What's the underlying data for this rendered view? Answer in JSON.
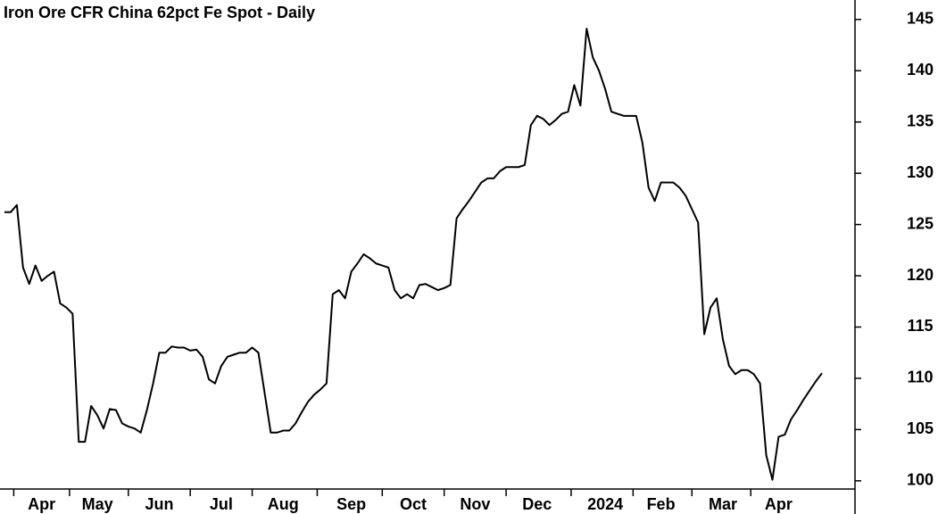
{
  "chart_data": {
    "type": "line",
    "title": "Iron Ore CFR China 62pct Fe Spot - Daily",
    "categories": [
      null,
      null,
      null,
      null,
      null,
      null,
      "Apr",
      null,
      null,
      null,
      null,
      null,
      null,
      null,
      null,
      "May",
      null,
      null,
      null,
      null,
      null,
      null,
      null,
      null,
      null,
      "Jun",
      null,
      null,
      null,
      null,
      null,
      null,
      null,
      null,
      null,
      "Jul",
      null,
      null,
      null,
      null,
      null,
      null,
      null,
      null,
      null,
      "Aug",
      null,
      null,
      null,
      null,
      null,
      null,
      null,
      null,
      null,
      null,
      "Sep",
      null,
      null,
      null,
      null,
      null,
      null,
      null,
      null,
      null,
      "Oct",
      null,
      null,
      null,
      null,
      null,
      null,
      null,
      null,
      null,
      "Nov",
      null,
      null,
      null,
      null,
      null,
      null,
      null,
      null,
      null,
      "Dec",
      null,
      null,
      null,
      null,
      null,
      null,
      null,
      null,
      null,
      null,
      "2024",
      null,
      null,
      null,
      null,
      null,
      null,
      null,
      null,
      "Feb",
      null,
      null,
      null,
      null,
      null,
      null,
      null,
      null,
      null,
      "Mar",
      null,
      null,
      null,
      null,
      null,
      null,
      null,
      null,
      "Apr",
      null,
      null,
      null,
      null,
      null,
      null,
      null
    ],
    "series": [
      {
        "name": "Iron Ore CFR China 62pct Fe Spot",
        "color": "#000000",
        "values": [
          126.2,
          126.2,
          126.9,
          120.8,
          119.2,
          121,
          119.5,
          120,
          120.4,
          117.3,
          116.9,
          116.3,
          103.8,
          103.8,
          107.3,
          106.4,
          105.1,
          107,
          106.9,
          105.6,
          105.3,
          105.1,
          104.7,
          106.9,
          109.5,
          112.5,
          112.5,
          113.1,
          113,
          113,
          112.7,
          112.8,
          112.1,
          109.9,
          109.5,
          111.2,
          112.1,
          112.3,
          112.5,
          112.5,
          113,
          112.5,
          108.6,
          104.7,
          104.7,
          104.9,
          104.9,
          105.6,
          106.7,
          107.7,
          108.4,
          108.9,
          109.5,
          118.2,
          118.6,
          117.8,
          120.4,
          121.2,
          122.1,
          121.7,
          121.2,
          121,
          120.8,
          118.6,
          117.8,
          118.2,
          117.8,
          119.1,
          119.2,
          118.9,
          118.6,
          118.8,
          119.1,
          125.6,
          126.5,
          127.3,
          128.2,
          129.1,
          129.5,
          129.5,
          130.2,
          130.6,
          130.6,
          130.6,
          130.8,
          134.7,
          135.6,
          135.3,
          134.7,
          135.2,
          135.8,
          136,
          138.6,
          136.6,
          144.1,
          141.3,
          140,
          138.2,
          136,
          135.8,
          135.6,
          135.6,
          135.6,
          133,
          128.6,
          127.3,
          129.1,
          129.1,
          129.1,
          128.6,
          127.8,
          126.5,
          125.2,
          114.3,
          116.9,
          117.8,
          113.8,
          111.2,
          110.4,
          110.8,
          110.8,
          110.4,
          109.5,
          102.5,
          100.1,
          104.3,
          104.5,
          106,
          106.9,
          107.9,
          108.8,
          109.7,
          110.5
        ]
      }
    ],
    "ylim": [
      99.2,
      146.9
    ],
    "yticks": [
      100,
      105,
      110,
      115,
      120,
      125,
      130,
      135,
      140,
      145
    ],
    "y_axis_side": "right"
  }
}
